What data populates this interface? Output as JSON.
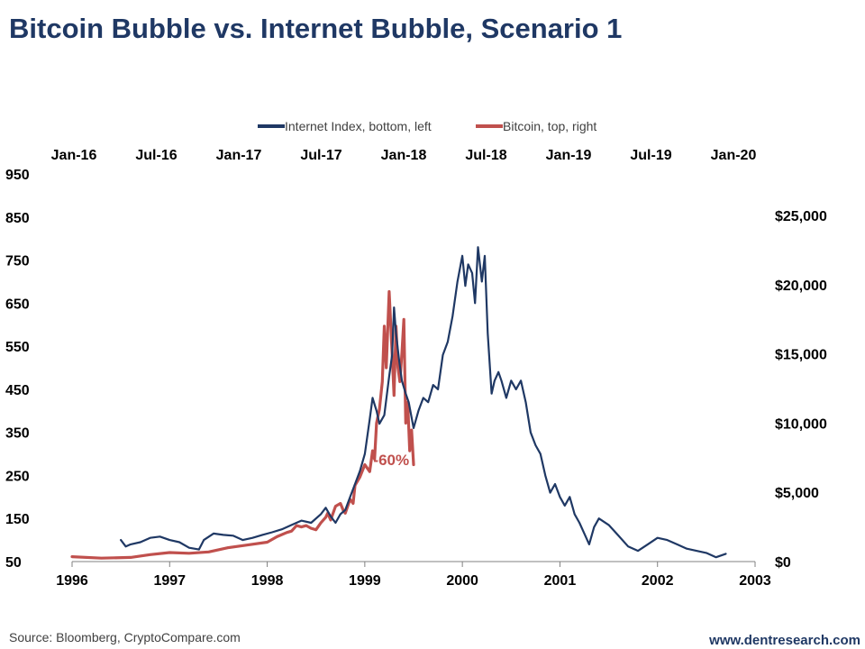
{
  "title": "Bitcoin Bubble vs. Internet Bubble, Scenario 1",
  "source": "Source: Bloomberg, CryptoCompare.com",
  "website": "www.dentresearch.com",
  "chart_data": {
    "type": "line",
    "legend_position": "top-center",
    "grid": false,
    "legend": [
      {
        "name": "Internet Index, bottom, left",
        "color": "#1f3864"
      },
      {
        "name": "Bitcoin, top, right",
        "color": "#c0504d"
      }
    ],
    "x_bottom": {
      "ticks": [
        1996,
        1997,
        1998,
        1999,
        2000,
        2001,
        2002,
        2003
      ],
      "labels": [
        "1996",
        "1997",
        "1998",
        "1999",
        "2000",
        "2001",
        "2002",
        "2003"
      ],
      "range": [
        1996,
        2003
      ]
    },
    "x_top": {
      "labels": [
        "Jan-16",
        "Jul-16",
        "Jan-17",
        "Jul-17",
        "Jan-18",
        "Jul-18",
        "Jan-19",
        "Jul-19",
        "Jan-20"
      ],
      "range": [
        "2016-01",
        "2020-01"
      ]
    },
    "y_left": {
      "range": [
        50,
        950
      ],
      "ticks": [
        50,
        150,
        250,
        350,
        450,
        550,
        650,
        750,
        850,
        950
      ],
      "labels": [
        "50",
        "150",
        "250",
        "350",
        "450",
        "550",
        "650",
        "750",
        "850",
        "950"
      ]
    },
    "y_right": {
      "range": [
        0,
        28000
      ],
      "ticks": [
        0,
        5000,
        10000,
        15000,
        20000,
        25000
      ],
      "labels": [
        "$0",
        "$5,000",
        "$10,000",
        "$15,000",
        "$20,000",
        "$25,000"
      ]
    },
    "annotation": {
      "text": "-60%",
      "color": "#c0504d",
      "x": 1999.55,
      "y": 7500
    },
    "series": [
      {
        "name": "Internet Index, bottom, left",
        "axis": "left",
        "color": "#1f3864",
        "x": [
          1996.5,
          1996.55,
          1996.6,
          1996.7,
          1996.8,
          1996.9,
          1997.0,
          1997.1,
          1997.2,
          1997.3,
          1997.35,
          1997.45,
          1997.55,
          1997.65,
          1997.75,
          1997.85,
          1997.95,
          1998.05,
          1998.15,
          1998.25,
          1998.35,
          1998.45,
          1998.55,
          1998.6,
          1998.65,
          1998.7,
          1998.75,
          1998.8,
          1998.85,
          1998.9,
          1998.95,
          1999.0,
          1999.05,
          1999.08,
          1999.12,
          1999.15,
          1999.2,
          1999.25,
          1999.28,
          1999.3,
          1999.32,
          1999.35,
          1999.38,
          1999.42,
          1999.45,
          1999.5,
          1999.55,
          1999.6,
          1999.65,
          1999.7,
          1999.75,
          1999.8,
          1999.85,
          1999.9,
          1999.95,
          2000.0,
          2000.03,
          2000.06,
          2000.1,
          2000.13,
          2000.16,
          2000.2,
          2000.23,
          2000.26,
          2000.3,
          2000.33,
          2000.37,
          2000.4,
          2000.45,
          2000.5,
          2000.55,
          2000.6,
          2000.65,
          2000.7,
          2000.75,
          2000.8,
          2000.85,
          2000.9,
          2000.95,
          2001.0,
          2001.05,
          2001.1,
          2001.15,
          2001.2,
          2001.25,
          2001.3,
          2001.35,
          2001.4,
          2001.5,
          2001.6,
          2001.7,
          2001.8,
          2001.9,
          2002.0,
          2002.1,
          2002.2,
          2002.3,
          2002.4,
          2002.5,
          2002.6,
          2002.7
        ],
        "values": [
          100,
          85,
          90,
          95,
          105,
          108,
          100,
          95,
          82,
          78,
          100,
          115,
          112,
          110,
          100,
          105,
          112,
          118,
          125,
          135,
          145,
          140,
          160,
          175,
          155,
          140,
          160,
          170,
          200,
          230,
          260,
          300,
          380,
          430,
          400,
          370,
          390,
          480,
          530,
          640,
          580,
          520,
          470,
          440,
          420,
          360,
          400,
          430,
          420,
          460,
          450,
          530,
          560,
          620,
          700,
          760,
          690,
          740,
          720,
          650,
          780,
          700,
          760,
          580,
          440,
          470,
          490,
          470,
          430,
          470,
          450,
          470,
          420,
          350,
          320,
          300,
          250,
          210,
          230,
          200,
          180,
          200,
          160,
          140,
          115,
          90,
          130,
          150,
          135,
          110,
          85,
          75,
          90,
          105,
          100,
          90,
          80,
          75,
          70,
          60,
          68
        ]
      },
      {
        "name": "Bitcoin, top, right",
        "axis": "right",
        "color": "#c0504d",
        "x": [
          1996.0,
          1996.3,
          1996.6,
          1996.8,
          1997.0,
          1997.2,
          1997.4,
          1997.6,
          1997.8,
          1998.0,
          1998.1,
          1998.2,
          1998.25,
          1998.3,
          1998.35,
          1998.4,
          1998.45,
          1998.5,
          1998.55,
          1998.6,
          1998.62,
          1998.65,
          1998.7,
          1998.75,
          1998.78,
          1998.8,
          1998.85,
          1998.88,
          1998.9,
          1998.95,
          1999.0,
          1999.05,
          1999.08,
          1999.1,
          1999.12,
          1999.15,
          1999.18,
          1999.2,
          1999.22,
          1999.25,
          1999.28,
          1999.3,
          1999.32,
          1999.34,
          1999.36,
          1999.38,
          1999.4,
          1999.42,
          1999.44,
          1999.46,
          1999.48,
          1999.5
        ],
        "values": [
          350,
          250,
          300,
          500,
          650,
          600,
          700,
          1000,
          1200,
          1400,
          1800,
          2100,
          2200,
          2600,
          2500,
          2600,
          2400,
          2300,
          2800,
          3200,
          3500,
          3000,
          4000,
          4200,
          3700,
          3500,
          4500,
          4200,
          5500,
          6100,
          7000,
          6500,
          8000,
          7400,
          10000,
          11000,
          13000,
          17000,
          14000,
          19500,
          15000,
          12000,
          17000,
          14000,
          13000,
          15000,
          17500,
          10000,
          11500,
          8000,
          9500,
          7000
        ]
      }
    ]
  }
}
